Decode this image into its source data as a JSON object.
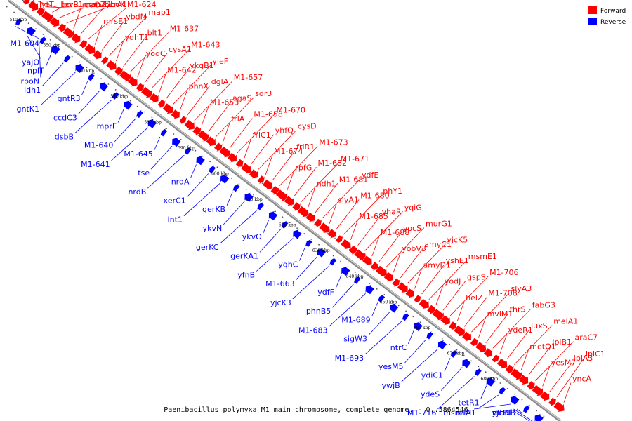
{
  "caption": "Paenibacillus polymyxa M1 main chromosome, complete genome. - 0..5864546",
  "legend": [
    {
      "label": "Forward",
      "color": "#ff0000"
    },
    {
      "label": "Reverse",
      "color": "#0000ff"
    }
  ],
  "colors": {
    "forward": "#ff0000",
    "reverse": "#0000ff",
    "backbone": "#999999"
  },
  "ticks": [
    "540 kbp",
    "550 kbp",
    "560 kbp",
    "570 kbp",
    "580 kbp",
    "590 kbp",
    "600 kbp",
    "610 kbp",
    "620 kbp",
    "630 kbp",
    "640 kbp",
    "650 kbp",
    "660 kbp",
    "670 kbp",
    "680 kbp"
  ],
  "forward_genes": [
    "lytT",
    "levR",
    "manX1",
    "bcrB1",
    "manZ",
    "ybdK",
    "rcaC",
    "bcrA1",
    "M1-624",
    "mrsE1",
    "ybdM",
    "map1",
    "ydhT1",
    "blt1",
    "M1-637",
    "yodC",
    "cysA1",
    "M1-643",
    "M1-642",
    "ykgB1",
    "yjeF",
    "phnX",
    "dglA",
    "M1-657",
    "M1-653",
    "agaS",
    "sdr3",
    "frlA",
    "M1-658",
    "M1-670",
    "frlC1",
    "yhfQ",
    "cysD",
    "M1-674",
    "frlR1",
    "M1-673",
    "rpfG",
    "M1-682",
    "M1-671",
    "ndh1",
    "M1-681",
    "ydfE",
    "slyA1",
    "M1-680",
    "phY1",
    "M1-685",
    "yhaR",
    "yqiG",
    "M1-688",
    "yocS",
    "murG1",
    "yobV3",
    "amyC1",
    "yjcK5",
    "amyD1",
    "yshE1",
    "msmE1",
    "yodJ",
    "gspS",
    "M1-706",
    "helZ",
    "M1-708",
    "slyA3",
    "mviM1",
    "thrS",
    "fabG3",
    "ydeR1",
    "luxS",
    "melA1",
    "metQ1",
    "lplB1",
    "araC7",
    "yesM7",
    "lplA3",
    "lplC1",
    "yncA"
  ],
  "reverse_genes": [
    "M1-604",
    "yajO",
    "rpoN",
    "npIT",
    "ldh1",
    "gntK1",
    "gntR3",
    "ccdC3",
    "dsbB",
    "mprF",
    "M1-640",
    "M1-641",
    "M1-645",
    "tse",
    "nrdB",
    "nrdA",
    "xerC1",
    "int1",
    "gerKB",
    "ykvN",
    "gerKC",
    "ykvO",
    "gerKA1",
    "yfnB",
    "yqhC",
    "M1-663",
    "yjcK3",
    "ydfF",
    "phnB5",
    "M1-683",
    "M1-689",
    "sigW3",
    "M1-693",
    "ntrC",
    "yesM5",
    "ywjB",
    "ydiC1",
    "ydeS",
    "M1-716",
    "tetR1",
    "relA1",
    "msmR1",
    "maNB",
    "dltE1",
    "yjcD"
  ]
}
